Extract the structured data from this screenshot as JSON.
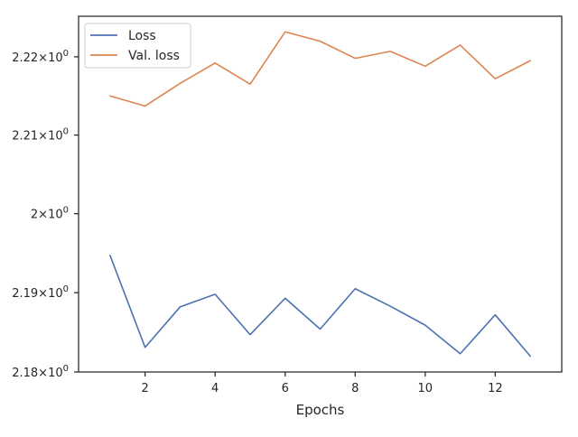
{
  "chart_data": {
    "type": "line",
    "xlabel": "Epochs",
    "ylabel": "",
    "x": [
      1,
      2,
      3,
      4,
      5,
      6,
      7,
      8,
      9,
      10,
      11,
      12,
      13
    ],
    "xlim": [
      0.1,
      13.9
    ],
    "ylim": [
      2.18,
      2.2252
    ],
    "yscale": "log",
    "xticks": [
      2,
      4,
      6,
      8,
      10,
      12
    ],
    "yticks": [
      {
        "value": 2.18,
        "base": "2.18",
        "exp": "0"
      },
      {
        "value": 2.19,
        "base": "2.19",
        "exp": "0"
      },
      {
        "value": 2.2,
        "base": "2",
        "exp": "0"
      },
      {
        "value": 2.21,
        "base": "2.21",
        "exp": "0"
      },
      {
        "value": 2.22,
        "base": "2.22",
        "exp": "0"
      }
    ],
    "times_symbol": "×",
    "tick_base": "10",
    "grid": false,
    "legend_position": "top-left",
    "series": [
      {
        "name": "Loss",
        "color": "#4c72b0",
        "values": [
          2.1947,
          2.1831,
          2.1882,
          2.1898,
          2.1847,
          2.1893,
          2.1854,
          2.1905,
          2.1883,
          2.1859,
          2.1823,
          2.1872,
          2.182
        ]
      },
      {
        "name": "Val. loss",
        "color": "#dd8452",
        "values": [
          2.215,
          2.2137,
          2.2166,
          2.2192,
          2.2165,
          2.2232,
          2.222,
          2.2198,
          2.2207,
          2.2188,
          2.2215,
          2.2172,
          2.2195
        ]
      }
    ]
  }
}
